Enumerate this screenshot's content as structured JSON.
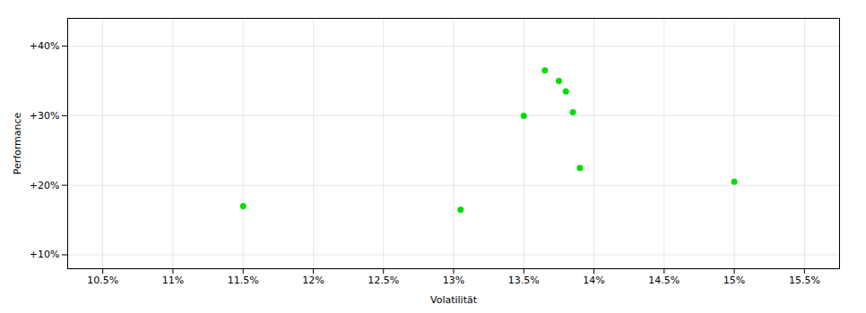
{
  "chart_data": {
    "type": "scatter",
    "x": [
      11.5,
      13.05,
      13.5,
      13.65,
      13.75,
      13.8,
      13.85,
      13.9,
      15.0
    ],
    "values": [
      17.0,
      16.5,
      30.0,
      36.5,
      35.0,
      33.5,
      30.5,
      22.5,
      20.5
    ],
    "color": "#00dd00",
    "xlabel": "Volatilität",
    "ylabel": "Performance",
    "xlim": [
      10.25,
      15.75
    ],
    "ylim": [
      8.0,
      44.0
    ],
    "xticks": [
      {
        "value": 10.5,
        "label": "10.5%"
      },
      {
        "value": 11.0,
        "label": "11%"
      },
      {
        "value": 11.5,
        "label": "11.5%"
      },
      {
        "value": 12.0,
        "label": "12%"
      },
      {
        "value": 12.5,
        "label": "12.5%"
      },
      {
        "value": 13.0,
        "label": "13%"
      },
      {
        "value": 13.5,
        "label": "13.5%"
      },
      {
        "value": 14.0,
        "label": "14%"
      },
      {
        "value": 14.5,
        "label": "14.5%"
      },
      {
        "value": 15.0,
        "label": "15%"
      },
      {
        "value": 15.5,
        "label": "15.5%"
      }
    ],
    "yticks": [
      {
        "value": 10,
        "label": "+10%"
      },
      {
        "value": 20,
        "label": "+20%"
      },
      {
        "value": 30,
        "label": "+30%"
      },
      {
        "value": 40,
        "label": "+40%"
      }
    ],
    "grid": true
  }
}
